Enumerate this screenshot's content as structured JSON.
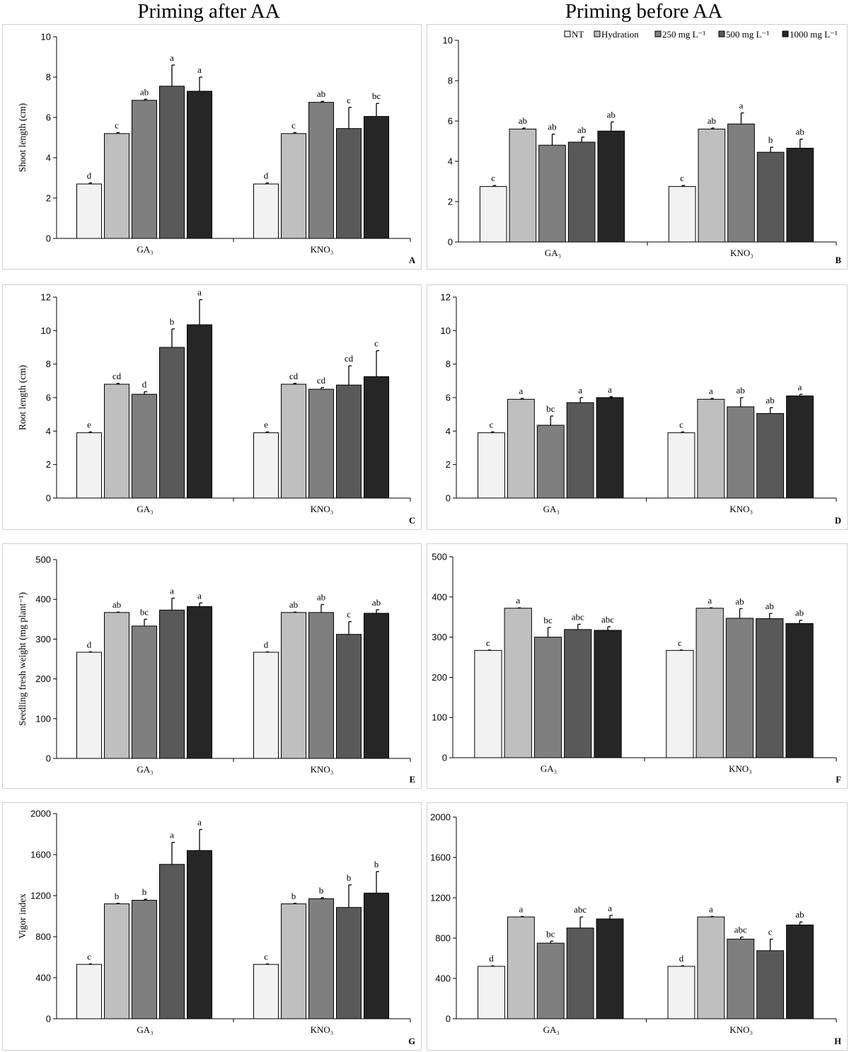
{
  "column_titles": [
    "Priming after AA",
    "Priming before AA"
  ],
  "legend": {
    "entries": [
      "NT",
      "Hydration",
      "250 mg L⁻¹",
      "500 mg L⁻¹",
      "1000 mg L⁻¹"
    ],
    "colors": [
      "#f2f2f2",
      "#bfbfbf",
      "#7f7f7f",
      "#595959",
      "#262626"
    ]
  },
  "chart_data": [
    {
      "panel": "A",
      "type": "bar",
      "ylabel": "Shoot length (cm)",
      "ylim": [
        0,
        10
      ],
      "yticks": [
        0,
        2,
        4,
        6,
        8,
        10
      ],
      "categories": [
        "GA₃",
        "KNO₃"
      ],
      "series": [
        {
          "name": "NT",
          "values": [
            2.7,
            2.7
          ],
          "errors": [
            0.05,
            0.05
          ],
          "letters": [
            "d",
            "d"
          ]
        },
        {
          "name": "Hydration",
          "values": [
            5.2,
            5.2
          ],
          "errors": [
            0.05,
            0.05
          ],
          "letters": [
            "c",
            "c"
          ]
        },
        {
          "name": "250 mg L⁻¹",
          "values": [
            6.85,
            6.75
          ],
          "errors": [
            0.05,
            0.05
          ],
          "letters": [
            "ab",
            "ab"
          ]
        },
        {
          "name": "500 mg L⁻¹",
          "values": [
            7.55,
            5.45
          ],
          "errors": [
            1.05,
            1.05
          ],
          "letters": [
            "a",
            "c"
          ]
        },
        {
          "name": "1000 mg L⁻¹",
          "values": [
            7.3,
            6.05
          ],
          "errors": [
            0.7,
            0.65
          ],
          "letters": [
            "a",
            "bc"
          ]
        }
      ]
    },
    {
      "panel": "B",
      "type": "bar",
      "ylabel": "",
      "ylim": [
        0,
        10
      ],
      "yticks": [
        0,
        2,
        4,
        6,
        8,
        10
      ],
      "categories": [
        "GA₃",
        "KNO₃"
      ],
      "series": [
        {
          "name": "NT",
          "values": [
            2.75,
            2.75
          ],
          "errors": [
            0.05,
            0.05
          ],
          "letters": [
            "c",
            "c"
          ]
        },
        {
          "name": "Hydration",
          "values": [
            5.6,
            5.6
          ],
          "errors": [
            0.05,
            0.05
          ],
          "letters": [
            "ab",
            "ab"
          ]
        },
        {
          "name": "250 mg L⁻¹",
          "values": [
            4.8,
            5.85
          ],
          "errors": [
            0.55,
            0.55
          ],
          "letters": [
            "ab",
            "a"
          ]
        },
        {
          "name": "500 mg L⁻¹",
          "values": [
            4.95,
            4.45
          ],
          "errors": [
            0.25,
            0.25
          ],
          "letters": [
            "ab",
            "b"
          ]
        },
        {
          "name": "1000 mg L⁻¹",
          "values": [
            5.5,
            4.65
          ],
          "errors": [
            0.45,
            0.45
          ],
          "letters": [
            "ab",
            "ab"
          ]
        }
      ]
    },
    {
      "panel": "C",
      "type": "bar",
      "ylabel": "Root length (cm)",
      "ylim": [
        0,
        12
      ],
      "yticks": [
        0,
        2,
        4,
        6,
        8,
        10,
        12
      ],
      "categories": [
        "GA₃",
        "KNO₃"
      ],
      "series": [
        {
          "name": "NT",
          "values": [
            3.9,
            3.9
          ],
          "errors": [
            0.05,
            0.05
          ],
          "letters": [
            "e",
            "e"
          ]
        },
        {
          "name": "Hydration",
          "values": [
            6.8,
            6.8
          ],
          "errors": [
            0.05,
            0.05
          ],
          "letters": [
            "cd",
            "cd"
          ]
        },
        {
          "name": "250 mg L⁻¹",
          "values": [
            6.2,
            6.5
          ],
          "errors": [
            0.15,
            0.1
          ],
          "letters": [
            "d",
            "cd"
          ]
        },
        {
          "name": "500 mg L⁻¹",
          "values": [
            9.0,
            6.75
          ],
          "errors": [
            1.1,
            1.15
          ],
          "letters": [
            "b",
            "cd"
          ]
        },
        {
          "name": "1000 mg L⁻¹",
          "values": [
            10.35,
            7.25
          ],
          "errors": [
            1.5,
            1.55
          ],
          "letters": [
            "a",
            "c"
          ]
        }
      ]
    },
    {
      "panel": "D",
      "type": "bar",
      "ylabel": "",
      "ylim": [
        0,
        12
      ],
      "yticks": [
        0,
        2,
        4,
        6,
        8,
        10,
        12
      ],
      "categories": [
        "GA₃",
        "KNO₃"
      ],
      "series": [
        {
          "name": "NT",
          "values": [
            3.9,
            3.9
          ],
          "errors": [
            0.05,
            0.05
          ],
          "letters": [
            "c",
            "c"
          ]
        },
        {
          "name": "Hydration",
          "values": [
            5.9,
            5.9
          ],
          "errors": [
            0.05,
            0.05
          ],
          "letters": [
            "a",
            "a"
          ]
        },
        {
          "name": "250 mg L⁻¹",
          "values": [
            4.35,
            5.45
          ],
          "errors": [
            0.55,
            0.55
          ],
          "letters": [
            "bc",
            "ab"
          ]
        },
        {
          "name": "500 mg L⁻¹",
          "values": [
            5.7,
            5.05
          ],
          "errors": [
            0.3,
            0.35
          ],
          "letters": [
            "a",
            "ab"
          ]
        },
        {
          "name": "1000 mg L⁻¹",
          "values": [
            6.0,
            6.1
          ],
          "errors": [
            0.05,
            0.1
          ],
          "letters": [
            "a",
            "a"
          ]
        }
      ]
    },
    {
      "panel": "E",
      "type": "bar",
      "ylabel": "Seedling fresh weight (mg plant⁻¹)",
      "ylim": [
        0,
        500
      ],
      "yticks": [
        0,
        100,
        200,
        300,
        400,
        500
      ],
      "categories": [
        "GA₃",
        "KNO₃"
      ],
      "series": [
        {
          "name": "NT",
          "values": [
            267,
            267
          ],
          "errors": [
            1,
            1
          ],
          "letters": [
            "d",
            "d"
          ]
        },
        {
          "name": "Hydration",
          "values": [
            367,
            367
          ],
          "errors": [
            1,
            1
          ],
          "letters": [
            "ab",
            "ab"
          ]
        },
        {
          "name": "250 mg L⁻¹",
          "values": [
            333,
            367
          ],
          "errors": [
            17,
            20
          ],
          "letters": [
            "bc",
            "ab"
          ]
        },
        {
          "name": "500 mg L⁻¹",
          "values": [
            373,
            312
          ],
          "errors": [
            30,
            32
          ],
          "letters": [
            "a",
            "c"
          ]
        },
        {
          "name": "1000 mg L⁻¹",
          "values": [
            382,
            365
          ],
          "errors": [
            9,
            9
          ],
          "letters": [
            "a",
            "ab"
          ]
        }
      ]
    },
    {
      "panel": "F",
      "type": "bar",
      "ylabel": "",
      "ylim": [
        0,
        500
      ],
      "yticks": [
        0,
        100,
        200,
        300,
        400,
        500
      ],
      "categories": [
        "GA₃",
        "KNO₃"
      ],
      "series": [
        {
          "name": "NT",
          "values": [
            267,
            267
          ],
          "errors": [
            1,
            1
          ],
          "letters": [
            "c",
            "c"
          ]
        },
        {
          "name": "Hydration",
          "values": [
            372,
            372
          ],
          "errors": [
            1,
            1
          ],
          "letters": [
            "a",
            "a"
          ]
        },
        {
          "name": "250 mg L⁻¹",
          "values": [
            300,
            347
          ],
          "errors": [
            24,
            24
          ],
          "letters": [
            "bc",
            "ab"
          ]
        },
        {
          "name": "500 mg L⁻¹",
          "values": [
            319,
            346
          ],
          "errors": [
            13,
            13
          ],
          "letters": [
            "abc",
            "ab"
          ]
        },
        {
          "name": "1000 mg L⁻¹",
          "values": [
            317,
            334
          ],
          "errors": [
            9,
            8
          ],
          "letters": [
            "abc",
            "ab"
          ]
        }
      ]
    },
    {
      "panel": "G",
      "type": "bar",
      "ylabel": "Vigor index",
      "ylim": [
        0,
        2000
      ],
      "yticks": [
        0,
        400,
        800,
        1200,
        1600,
        2000
      ],
      "categories": [
        "GA₃",
        "KNO₃"
      ],
      "series": [
        {
          "name": "NT",
          "values": [
            530,
            530
          ],
          "errors": [
            5,
            5
          ],
          "letters": [
            "c",
            "c"
          ]
        },
        {
          "name": "Hydration",
          "values": [
            1120,
            1120
          ],
          "errors": [
            5,
            5
          ],
          "letters": [
            "b",
            "b"
          ]
        },
        {
          "name": "250 mg L⁻¹",
          "values": [
            1155,
            1170
          ],
          "errors": [
            10,
            10
          ],
          "letters": [
            "b",
            "b"
          ]
        },
        {
          "name": "500 mg L⁻¹",
          "values": [
            1505,
            1085
          ],
          "errors": [
            215,
            220
          ],
          "letters": [
            "a",
            "b"
          ]
        },
        {
          "name": "1000 mg L⁻¹",
          "values": [
            1640,
            1225
          ],
          "errors": [
            205,
            210
          ],
          "letters": [
            "a",
            "b"
          ]
        }
      ]
    },
    {
      "panel": "H",
      "type": "bar",
      "ylabel": "",
      "ylim": [
        0,
        2000
      ],
      "yticks": [
        0,
        400,
        800,
        1200,
        1600,
        2000
      ],
      "categories": [
        "GA₃",
        "KNO₃"
      ],
      "series": [
        {
          "name": "NT",
          "values": [
            520,
            520
          ],
          "errors": [
            5,
            5
          ],
          "letters": [
            "d",
            "d"
          ]
        },
        {
          "name": "Hydration",
          "values": [
            1010,
            1010
          ],
          "errors": [
            5,
            5
          ],
          "letters": [
            "a",
            "a"
          ]
        },
        {
          "name": "250 mg L⁻¹",
          "values": [
            750,
            790
          ],
          "errors": [
            20,
            20
          ],
          "letters": [
            "bc",
            "abc"
          ]
        },
        {
          "name": "500 mg L⁻¹",
          "values": [
            900,
            675
          ],
          "errors": [
            110,
            115
          ],
          "letters": [
            "abc",
            "c"
          ]
        },
        {
          "name": "1000 mg L⁻¹",
          "values": [
            990,
            930
          ],
          "errors": [
            35,
            30
          ],
          "letters": [
            "a",
            "ab"
          ]
        }
      ]
    }
  ]
}
